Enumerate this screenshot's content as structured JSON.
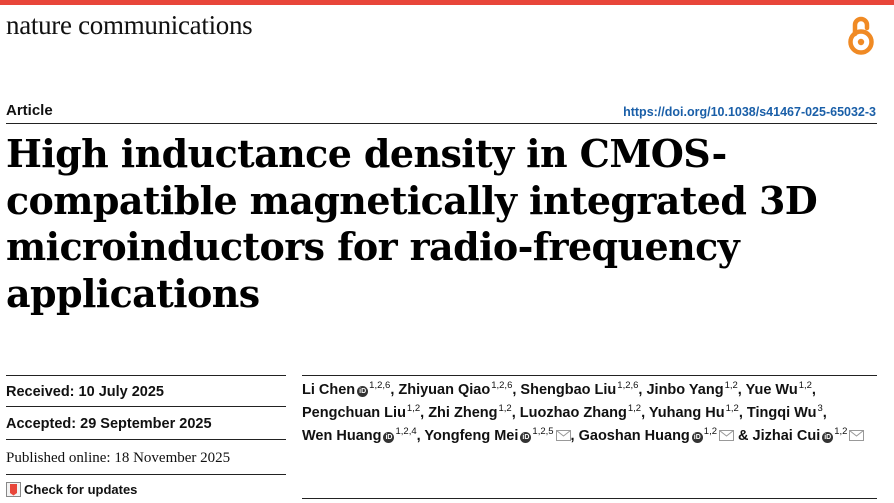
{
  "header": {
    "journal_name": "nature communications",
    "accent_color": "#e8463a",
    "open_access_icon": "open-access-lock-icon"
  },
  "article": {
    "type": "Article",
    "doi": "https://doi.org/10.1038/s41467-025-65032-3",
    "title": "High inductance density in CMOS-compatible magnetically integrated 3D microinductors for radio-frequency applications"
  },
  "dates": {
    "received": "Received: 10 July 2025",
    "accepted": "Accepted: 29 September 2025",
    "published": "Published online: 18 November 2025"
  },
  "check_updates": "Check for updates",
  "authors": [
    {
      "name": "Li Chen",
      "sup": "1,2,6",
      "orcid": true,
      "mail": false
    },
    {
      "name": "Zhiyuan Qiao",
      "sup": "1,2,6",
      "orcid": false,
      "mail": false
    },
    {
      "name": "Shengbao Liu",
      "sup": "1,2,6",
      "orcid": false,
      "mail": false
    },
    {
      "name": "Jinbo Yang",
      "sup": "1,2",
      "orcid": false,
      "mail": false
    },
    {
      "name": "Yue Wu",
      "sup": "1,2",
      "orcid": false,
      "mail": false
    },
    {
      "name": "Pengchuan Liu",
      "sup": "1,2",
      "orcid": false,
      "mail": false
    },
    {
      "name": "Zhi Zheng",
      "sup": "1,2",
      "orcid": false,
      "mail": false
    },
    {
      "name": "Luozhao Zhang",
      "sup": "1,2",
      "orcid": false,
      "mail": false
    },
    {
      "name": "Yuhang Hu",
      "sup": "1,2",
      "orcid": false,
      "mail": false
    },
    {
      "name": "Tingqi Wu",
      "sup": "3",
      "orcid": false,
      "mail": false
    },
    {
      "name": "Wen Huang",
      "sup": "1,2,4",
      "orcid": true,
      "mail": false
    },
    {
      "name": "Yongfeng Mei",
      "sup": "1,2,5",
      "orcid": true,
      "mail": true
    },
    {
      "name": "Gaoshan Huang",
      "sup": "1,2",
      "orcid": true,
      "mail": true
    },
    {
      "name": "Jizhai Cui",
      "sup": "1,2",
      "orcid": true,
      "mail": true
    }
  ]
}
